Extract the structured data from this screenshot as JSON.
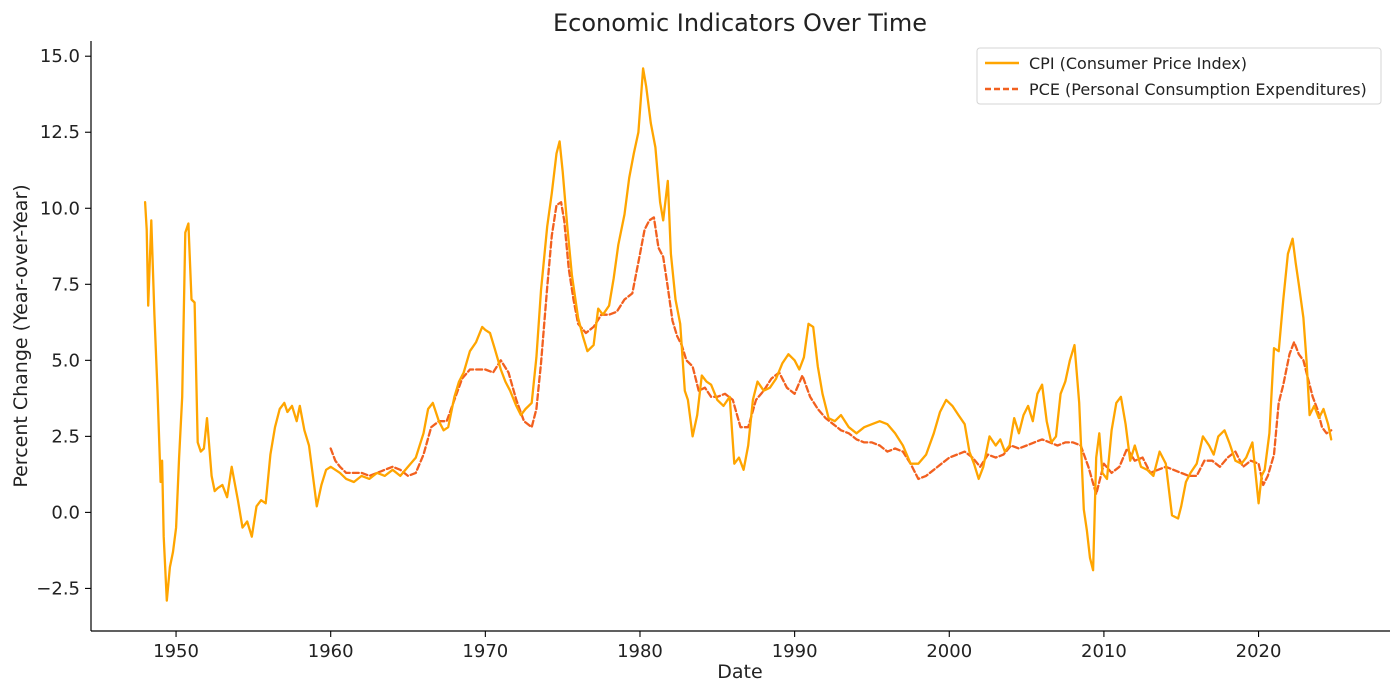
{
  "chart_data": {
    "type": "line",
    "title": "Economic Indicators Over Time",
    "xlabel": "Date",
    "ylabel": "Percent Change (Year-over-Year)",
    "xlim": [
      1944.5,
      2028.5
    ],
    "ylim": [
      -3.9,
      15.5
    ],
    "xticks": [
      1950,
      1960,
      1970,
      1980,
      1990,
      2000,
      2010,
      2020
    ],
    "yticks": [
      -2.5,
      0.0,
      2.5,
      5.0,
      7.5,
      10.0,
      12.5,
      15.0
    ],
    "ytick_labels": [
      "−2.5",
      "0.0",
      "2.5",
      "5.0",
      "7.5",
      "10.0",
      "12.5",
      "15.0"
    ],
    "grid": false,
    "legend_position": "top-right",
    "series": [
      {
        "name": "CPI (Consumer Price Index)",
        "color": "#FFA500",
        "style": "solid",
        "x": [
          1948.0,
          1948.1,
          1948.2,
          1948.4,
          1948.6,
          1948.8,
          1949.0,
          1949.1,
          1949.2,
          1949.4,
          1949.6,
          1949.8,
          1950.0,
          1950.2,
          1950.4,
          1950.6,
          1950.8,
          1951.0,
          1951.2,
          1951.4,
          1951.6,
          1951.8,
          1952.0,
          1952.3,
          1952.5,
          1952.7,
          1953.0,
          1953.3,
          1953.6,
          1954.0,
          1954.3,
          1954.6,
          1954.9,
          1955.2,
          1955.5,
          1955.8,
          1956.1,
          1956.4,
          1956.7,
          1957.0,
          1957.2,
          1957.5,
          1957.8,
          1958.0,
          1958.3,
          1958.6,
          1958.9,
          1959.1,
          1959.4,
          1959.7,
          1960.0,
          1960.3,
          1960.6,
          1961.0,
          1961.5,
          1962.0,
          1962.5,
          1963.0,
          1963.5,
          1964.0,
          1964.5,
          1965.0,
          1965.5,
          1966.0,
          1966.3,
          1966.6,
          1967.0,
          1967.3,
          1967.6,
          1968.0,
          1968.3,
          1968.6,
          1969.0,
          1969.4,
          1969.8,
          1970.0,
          1970.3,
          1970.6,
          1971.0,
          1971.3,
          1971.6,
          1972.0,
          1972.3,
          1972.6,
          1973.0,
          1973.3,
          1973.6,
          1974.0,
          1974.3,
          1974.6,
          1974.8,
          1975.0,
          1975.3,
          1975.6,
          1976.0,
          1976.3,
          1976.6,
          1977.0,
          1977.3,
          1977.6,
          1978.0,
          1978.3,
          1978.6,
          1979.0,
          1979.3,
          1979.6,
          1979.9,
          1980.2,
          1980.4,
          1980.7,
          1981.0,
          1981.3,
          1981.5,
          1981.8,
          1982.0,
          1982.3,
          1982.6,
          1982.9,
          1983.1,
          1983.4,
          1983.7,
          1984.0,
          1984.3,
          1984.6,
          1985.0,
          1985.4,
          1985.8,
          1986.1,
          1986.4,
          1986.7,
          1987.0,
          1987.3,
          1987.6,
          1988.0,
          1988.4,
          1988.8,
          1989.2,
          1989.6,
          1990.0,
          1990.3,
          1990.6,
          1990.9,
          1991.2,
          1991.5,
          1991.8,
          1992.2,
          1992.6,
          1993.0,
          1993.5,
          1994.0,
          1994.5,
          1995.0,
          1995.5,
          1996.0,
          1996.5,
          1997.0,
          1997.5,
          1998.0,
          1998.5,
          1999.0,
          1999.4,
          1999.8,
          2000.2,
          2000.6,
          2001.0,
          2001.3,
          2001.6,
          2001.9,
          2002.2,
          2002.6,
          2003.0,
          2003.3,
          2003.6,
          2003.9,
          2004.2,
          2004.5,
          2004.8,
          2005.1,
          2005.4,
          2005.7,
          2006.0,
          2006.3,
          2006.6,
          2006.9,
          2007.2,
          2007.5,
          2007.8,
          2008.1,
          2008.4,
          2008.7,
          2008.9,
          2009.1,
          2009.3,
          2009.5,
          2009.7,
          2009.9,
          2010.2,
          2010.5,
          2010.8,
          2011.1,
          2011.4,
          2011.7,
          2012.0,
          2012.4,
          2012.8,
          2013.2,
          2013.6,
          2014.0,
          2014.4,
          2014.8,
          2015.0,
          2015.3,
          2015.6,
          2016.0,
          2016.4,
          2016.8,
          2017.1,
          2017.4,
          2017.8,
          2018.1,
          2018.5,
          2018.9,
          2019.2,
          2019.6,
          2020.0,
          2020.2,
          2020.4,
          2020.7,
          2021.0,
          2021.3,
          2021.6,
          2021.9,
          2022.2,
          2022.4,
          2022.6,
          2022.9,
          2023.1,
          2023.3,
          2023.6,
          2023.9,
          2024.2,
          2024.5,
          2024.7
        ],
        "y": [
          10.2,
          9.3,
          6.8,
          9.6,
          6.5,
          4.0,
          1.0,
          1.7,
          -0.8,
          -2.9,
          -1.8,
          -1.3,
          -0.5,
          1.8,
          3.8,
          9.2,
          9.5,
          7.0,
          6.9,
          2.3,
          2.0,
          2.1,
          3.1,
          1.2,
          0.7,
          0.8,
          0.9,
          0.5,
          1.5,
          0.4,
          -0.5,
          -0.3,
          -0.8,
          0.2,
          0.4,
          0.3,
          1.9,
          2.8,
          3.4,
          3.6,
          3.3,
          3.5,
          3.0,
          3.5,
          2.7,
          2.2,
          1.0,
          0.2,
          0.9,
          1.4,
          1.5,
          1.4,
          1.3,
          1.1,
          1.0,
          1.2,
          1.1,
          1.3,
          1.2,
          1.4,
          1.2,
          1.5,
          1.8,
          2.6,
          3.4,
          3.6,
          3.0,
          2.7,
          2.8,
          3.8,
          4.3,
          4.6,
          5.3,
          5.6,
          6.1,
          6.0,
          5.9,
          5.4,
          4.7,
          4.3,
          4.0,
          3.5,
          3.2,
          3.4,
          3.6,
          5.1,
          7.3,
          9.4,
          10.5,
          11.8,
          12.2,
          11.2,
          9.4,
          7.8,
          6.4,
          5.8,
          5.3,
          5.5,
          6.7,
          6.5,
          6.8,
          7.7,
          8.8,
          9.8,
          11.0,
          11.8,
          12.5,
          14.6,
          14.0,
          12.8,
          12.0,
          10.2,
          9.6,
          10.9,
          8.5,
          7.0,
          6.2,
          4.0,
          3.7,
          2.5,
          3.2,
          4.5,
          4.3,
          4.2,
          3.7,
          3.5,
          3.8,
          1.6,
          1.8,
          1.4,
          2.2,
          3.7,
          4.3,
          4.0,
          4.1,
          4.4,
          4.9,
          5.2,
          5.0,
          4.7,
          5.1,
          6.2,
          6.1,
          4.8,
          3.9,
          3.1,
          3.0,
          3.2,
          2.8,
          2.6,
          2.8,
          2.9,
          3.0,
          2.9,
          2.6,
          2.2,
          1.6,
          1.6,
          1.9,
          2.6,
          3.3,
          3.7,
          3.5,
          3.2,
          2.9,
          2.0,
          1.6,
          1.1,
          1.5,
          2.5,
          2.2,
          2.4,
          2.0,
          2.2,
          3.1,
          2.6,
          3.2,
          3.5,
          3.0,
          3.9,
          4.2,
          3.0,
          2.3,
          2.5,
          3.9,
          4.3,
          5.0,
          5.5,
          3.6,
          0.1,
          -0.6,
          -1.5,
          -1.9,
          1.8,
          2.6,
          1.3,
          1.1,
          2.7,
          3.6,
          3.8,
          2.9,
          1.7,
          2.2,
          1.5,
          1.4,
          1.2,
          2.0,
          1.6,
          -0.1,
          -0.2,
          0.2,
          1.0,
          1.3,
          1.6,
          2.5,
          2.2,
          1.9,
          2.5,
          2.7,
          2.3,
          1.7,
          1.6,
          1.8,
          2.3,
          0.3,
          1.2,
          1.4,
          2.6,
          5.4,
          5.3,
          7.0,
          8.5,
          9.0,
          8.2,
          7.5,
          6.4,
          5.0,
          3.2,
          3.5,
          3.1,
          3.4,
          2.9,
          2.4
        ]
      },
      {
        "name": "PCE (Personal Consumption Expenditures)",
        "color": "#F2601F",
        "style": "dashed",
        "x": [
          1960.0,
          1960.3,
          1960.6,
          1961.0,
          1961.5,
          1962.0,
          1962.5,
          1963.0,
          1963.5,
          1964.0,
          1964.5,
          1965.0,
          1965.5,
          1966.0,
          1966.5,
          1967.0,
          1967.5,
          1968.0,
          1968.5,
          1969.0,
          1969.5,
          1970.0,
          1970.5,
          1971.0,
          1971.5,
          1972.0,
          1972.5,
          1973.0,
          1973.3,
          1973.6,
          1974.0,
          1974.3,
          1974.6,
          1974.9,
          1975.1,
          1975.4,
          1975.7,
          1976.0,
          1976.5,
          1977.0,
          1977.5,
          1978.0,
          1978.5,
          1979.0,
          1979.5,
          1980.0,
          1980.3,
          1980.6,
          1980.9,
          1981.2,
          1981.5,
          1981.8,
          1982.1,
          1982.4,
          1982.7,
          1983.0,
          1983.4,
          1983.8,
          1984.2,
          1984.6,
          1985.0,
          1985.5,
          1986.0,
          1986.5,
          1987.0,
          1987.5,
          1988.0,
          1988.5,
          1989.0,
          1989.5,
          1990.0,
          1990.5,
          1991.0,
          1991.5,
          1992.0,
          1992.5,
          1993.0,
          1993.5,
          1994.0,
          1994.5,
          1995.0,
          1995.5,
          1996.0,
          1996.5,
          1997.0,
          1997.5,
          1998.0,
          1998.5,
          1999.0,
          1999.5,
          2000.0,
          2000.5,
          2001.0,
          2001.5,
          2002.0,
          2002.5,
          2003.0,
          2003.5,
          2004.0,
          2004.5,
          2005.0,
          2005.5,
          2006.0,
          2006.5,
          2007.0,
          2007.5,
          2008.0,
          2008.5,
          2009.0,
          2009.5,
          2010.0,
          2010.5,
          2011.0,
          2011.5,
          2012.0,
          2012.5,
          2013.0,
          2013.5,
          2014.0,
          2014.5,
          2015.0,
          2015.5,
          2016.0,
          2016.5,
          2017.0,
          2017.5,
          2018.0,
          2018.5,
          2019.0,
          2019.5,
          2020.0,
          2020.3,
          2020.6,
          2021.0,
          2021.3,
          2021.6,
          2022.0,
          2022.3,
          2022.6,
          2022.9,
          2023.2,
          2023.5,
          2023.8,
          2024.1,
          2024.4,
          2024.7
        ],
        "y": [
          2.1,
          1.7,
          1.5,
          1.3,
          1.3,
          1.3,
          1.2,
          1.3,
          1.4,
          1.5,
          1.4,
          1.2,
          1.3,
          1.9,
          2.8,
          3.0,
          3.0,
          3.7,
          4.4,
          4.7,
          4.7,
          4.7,
          4.6,
          5.0,
          4.6,
          3.7,
          3.0,
          2.8,
          3.4,
          4.9,
          7.4,
          9.1,
          10.1,
          10.2,
          9.6,
          8.0,
          7.0,
          6.2,
          5.9,
          6.1,
          6.5,
          6.5,
          6.6,
          7.0,
          7.2,
          8.5,
          9.3,
          9.6,
          9.7,
          8.7,
          8.4,
          7.4,
          6.3,
          5.8,
          5.5,
          5.0,
          4.8,
          4.0,
          4.1,
          3.8,
          3.8,
          3.9,
          3.7,
          2.8,
          2.8,
          3.7,
          4.0,
          4.4,
          4.6,
          4.1,
          3.9,
          4.5,
          3.8,
          3.4,
          3.1,
          2.9,
          2.7,
          2.6,
          2.4,
          2.3,
          2.3,
          2.2,
          2.0,
          2.1,
          2.0,
          1.6,
          1.1,
          1.2,
          1.4,
          1.6,
          1.8,
          1.9,
          2.0,
          1.8,
          1.5,
          1.9,
          1.8,
          1.9,
          2.2,
          2.1,
          2.2,
          2.3,
          2.4,
          2.3,
          2.2,
          2.3,
          2.3,
          2.2,
          1.5,
          0.6,
          1.6,
          1.3,
          1.5,
          2.1,
          1.7,
          1.8,
          1.3,
          1.4,
          1.5,
          1.4,
          1.3,
          1.2,
          1.2,
          1.7,
          1.7,
          1.5,
          1.8,
          2.0,
          1.5,
          1.7,
          1.6,
          0.9,
          1.2,
          1.9,
          3.6,
          4.2,
          5.2,
          5.6,
          5.2,
          5.0,
          4.4,
          3.8,
          3.4,
          2.8,
          2.6,
          2.7
        ]
      }
    ]
  }
}
